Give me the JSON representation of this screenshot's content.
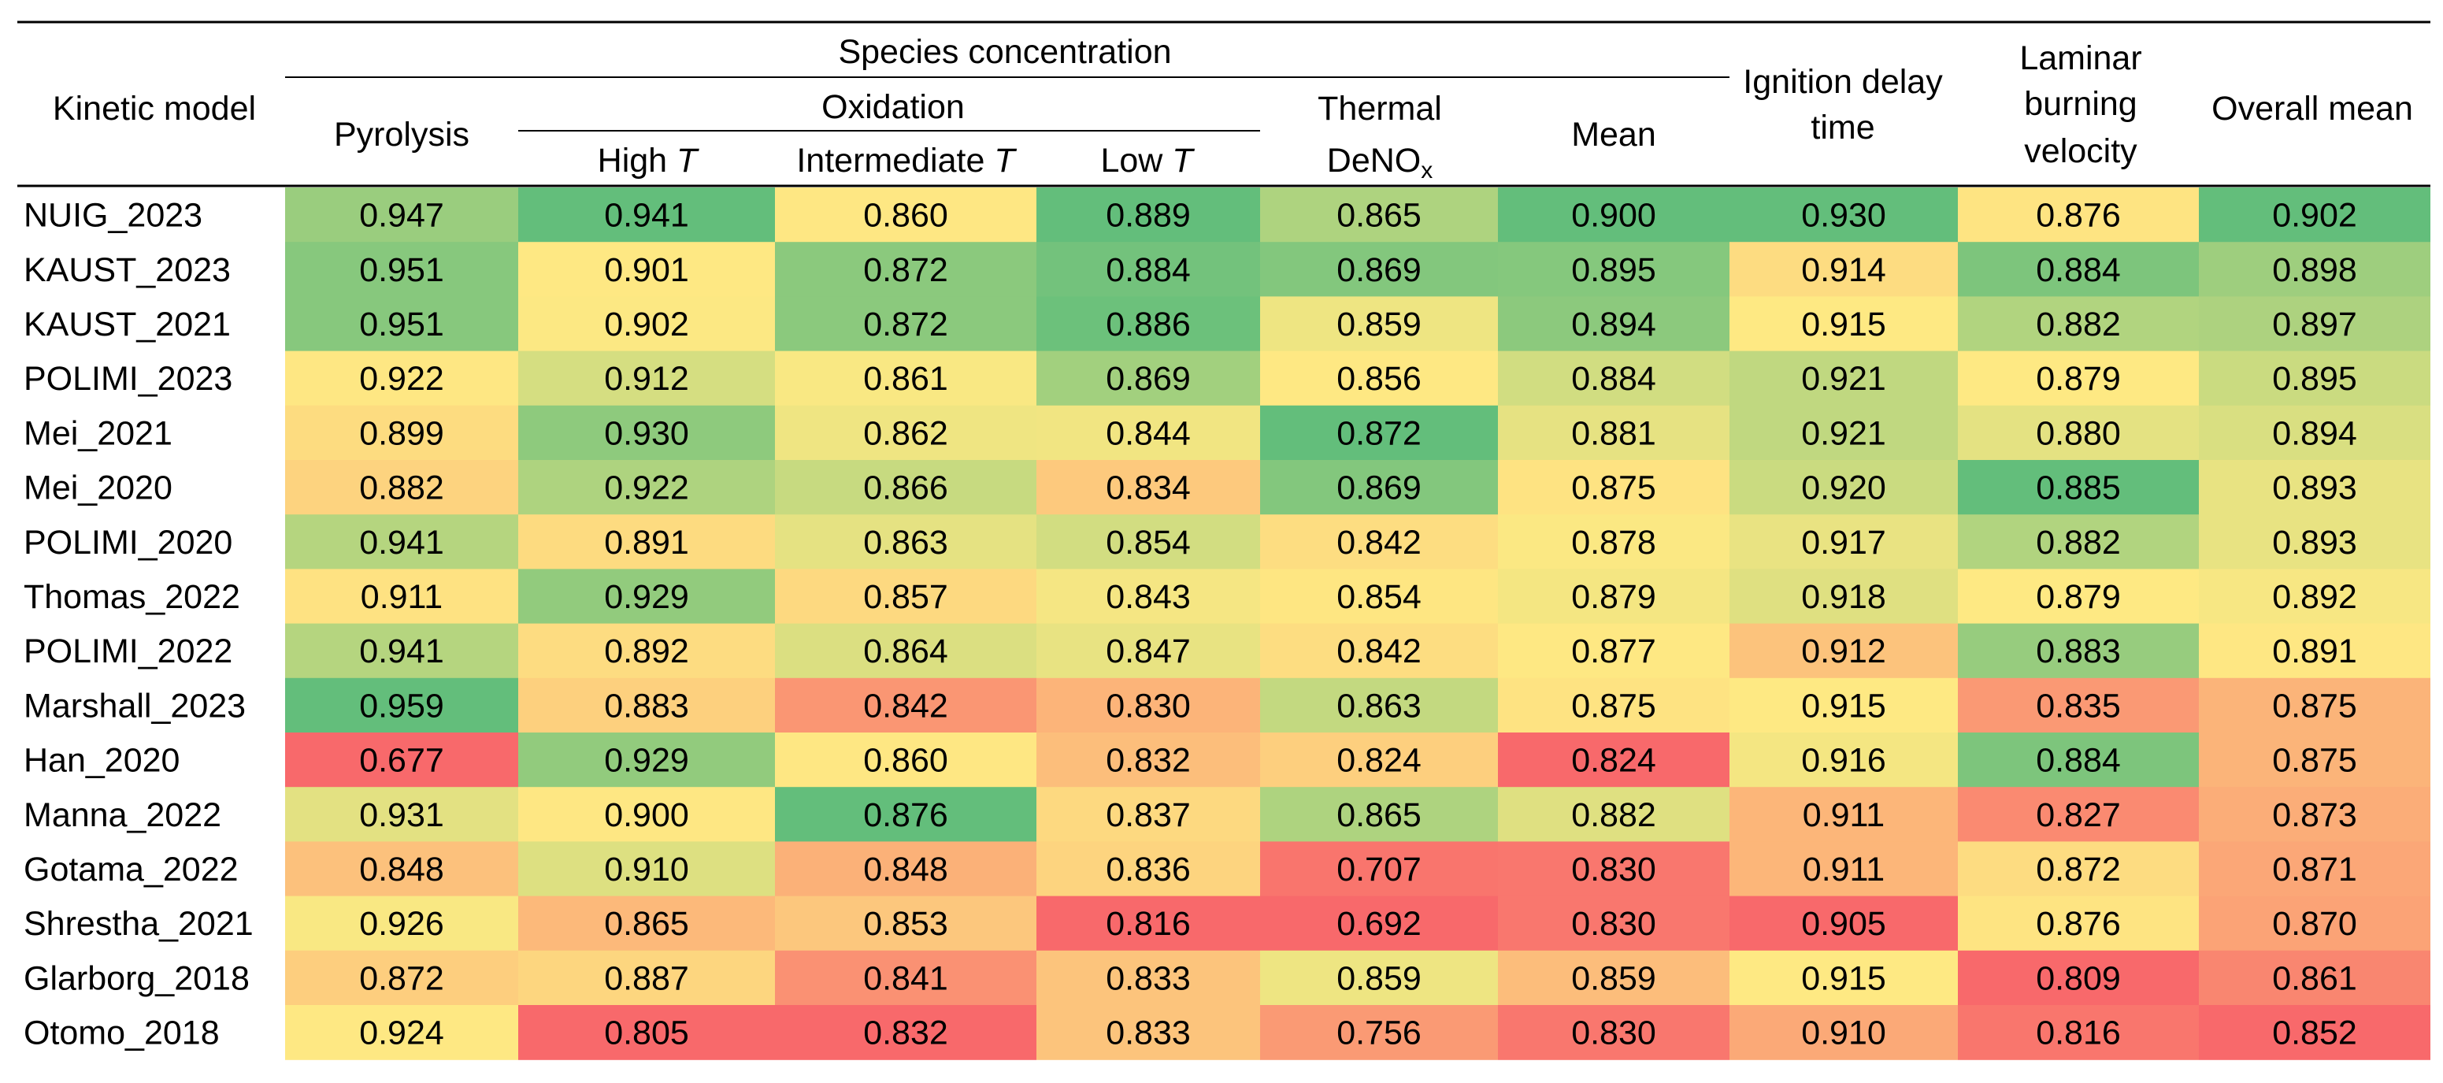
{
  "chart_data": {
    "type": "table",
    "title": "",
    "color_scale": {
      "low": "#f8696b",
      "mid": "#fee983",
      "high": "#63be7b"
    },
    "header": {
      "row_label_header": "Kinetic model",
      "group_species": "Species concentration",
      "group_oxidation": "Oxidation",
      "pyrolysis": "Pyrolysis",
      "high_t": "High",
      "intermediate_t": "Intermediate",
      "low_t": "Low",
      "t_symbol": "T",
      "thermal_line1": "Thermal",
      "thermal_deno": "DeNO",
      "thermal_sub": "x",
      "mean": "Mean",
      "ignition_line1": "Ignition delay",
      "ignition_line2": "time",
      "laminar_line1": "Laminar",
      "laminar_line2": "burning",
      "laminar_line3": "velocity",
      "overall_mean": "Overall mean"
    },
    "columns": [
      "Pyrolysis",
      "High T",
      "Intermediate T",
      "Low T",
      "Thermal DeNOx",
      "Mean",
      "Ignition delay time",
      "Laminar burning velocity",
      "Overall mean"
    ],
    "rows": [
      {
        "model": "NUIG_2023",
        "values": [
          "0.947",
          "0.941",
          "0.860",
          "0.889",
          "0.865",
          "0.900",
          "0.930",
          "0.876",
          "0.902"
        ]
      },
      {
        "model": "KAUST_2023",
        "values": [
          "0.951",
          "0.901",
          "0.872",
          "0.884",
          "0.869",
          "0.895",
          "0.914",
          "0.884",
          "0.898"
        ]
      },
      {
        "model": "KAUST_2021",
        "values": [
          "0.951",
          "0.902",
          "0.872",
          "0.886",
          "0.859",
          "0.894",
          "0.915",
          "0.882",
          "0.897"
        ]
      },
      {
        "model": "POLIMI_2023",
        "values": [
          "0.922",
          "0.912",
          "0.861",
          "0.869",
          "0.856",
          "0.884",
          "0.921",
          "0.879",
          "0.895"
        ]
      },
      {
        "model": "Mei_2021",
        "values": [
          "0.899",
          "0.930",
          "0.862",
          "0.844",
          "0.872",
          "0.881",
          "0.921",
          "0.880",
          "0.894"
        ]
      },
      {
        "model": "Mei_2020",
        "values": [
          "0.882",
          "0.922",
          "0.866",
          "0.834",
          "0.869",
          "0.875",
          "0.920",
          "0.885",
          "0.893"
        ]
      },
      {
        "model": "POLIMI_2020",
        "values": [
          "0.941",
          "0.891",
          "0.863",
          "0.854",
          "0.842",
          "0.878",
          "0.917",
          "0.882",
          "0.893"
        ]
      },
      {
        "model": "Thomas_2022",
        "values": [
          "0.911",
          "0.929",
          "0.857",
          "0.843",
          "0.854",
          "0.879",
          "0.918",
          "0.879",
          "0.892"
        ]
      },
      {
        "model": "POLIMI_2022",
        "values": [
          "0.941",
          "0.892",
          "0.864",
          "0.847",
          "0.842",
          "0.877",
          "0.912",
          "0.883",
          "0.891"
        ]
      },
      {
        "model": "Marshall_2023",
        "values": [
          "0.959",
          "0.883",
          "0.842",
          "0.830",
          "0.863",
          "0.875",
          "0.915",
          "0.835",
          "0.875"
        ]
      },
      {
        "model": "Han_2020",
        "values": [
          "0.677",
          "0.929",
          "0.860",
          "0.832",
          "0.824",
          "0.824",
          "0.916",
          "0.884",
          "0.875"
        ]
      },
      {
        "model": "Manna_2022",
        "values": [
          "0.931",
          "0.900",
          "0.876",
          "0.837",
          "0.865",
          "0.882",
          "0.911",
          "0.827",
          "0.873"
        ]
      },
      {
        "model": "Gotama_2022",
        "values": [
          "0.848",
          "0.910",
          "0.848",
          "0.836",
          "0.707",
          "0.830",
          "0.911",
          "0.872",
          "0.871"
        ]
      },
      {
        "model": "Shrestha_2021",
        "values": [
          "0.926",
          "0.865",
          "0.853",
          "0.816",
          "0.692",
          "0.830",
          "0.905",
          "0.876",
          "0.870"
        ]
      },
      {
        "model": "Glarborg_2018",
        "values": [
          "0.872",
          "0.887",
          "0.841",
          "0.833",
          "0.859",
          "0.859",
          "0.915",
          "0.809",
          "0.861"
        ]
      },
      {
        "model": "Otomo_2018",
        "values": [
          "0.924",
          "0.805",
          "0.832",
          "0.833",
          "0.756",
          "0.830",
          "0.910",
          "0.816",
          "0.852"
        ]
      }
    ]
  }
}
